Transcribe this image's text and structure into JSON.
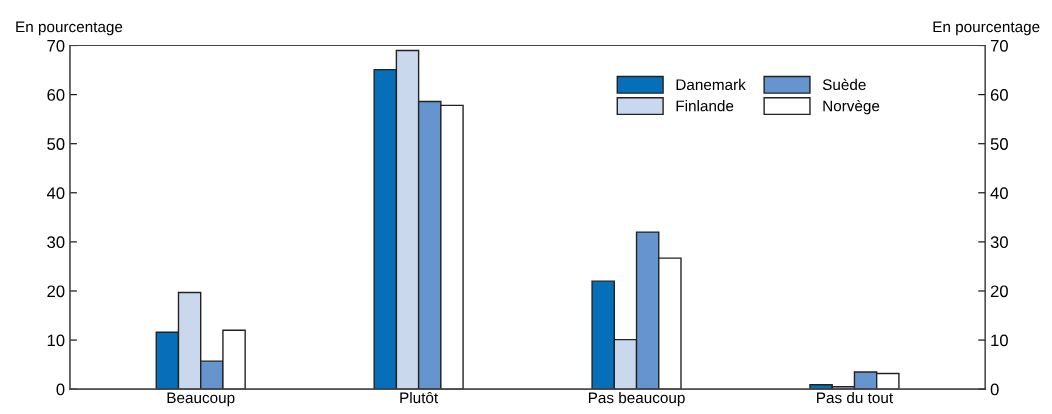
{
  "chart_data": {
    "type": "bar",
    "categories": [
      "Beaucoup",
      "Plutôt",
      "Pas beaucoup",
      "Pas du tout"
    ],
    "series": [
      {
        "name": "Danemark",
        "color": "#0570b9",
        "values": [
          11.6,
          65.1,
          22.0,
          0.9
        ]
      },
      {
        "name": "Finlande",
        "color": "#cad8ee",
        "values": [
          19.7,
          69.0,
          10.1,
          0.5
        ]
      },
      {
        "name": "Suède",
        "color": "#6694cf",
        "values": [
          5.7,
          58.6,
          32.0,
          3.5
        ]
      },
      {
        "name": "Norvège",
        "color": "#ffffff",
        "values": [
          12.0,
          57.8,
          26.7,
          3.2
        ]
      }
    ],
    "ylabel": "En pourcentage",
    "y2label": "En pourcentage",
    "ylim": [
      0,
      70
    ],
    "yticks": [
      0,
      10,
      20,
      30,
      40,
      50,
      60,
      70
    ],
    "y2lim": [
      0,
      70
    ],
    "y2ticks": [
      0,
      10,
      20,
      30,
      40,
      50,
      60,
      70
    ],
    "legend": "top right",
    "grid": false
  }
}
